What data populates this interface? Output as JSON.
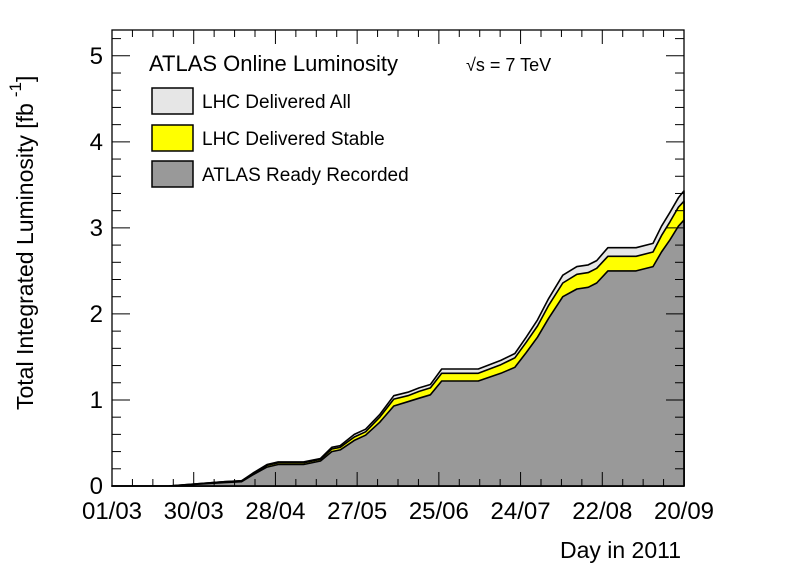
{
  "chart_data": {
    "type": "area",
    "title": "",
    "xlabel": "Day in 2011",
    "ylabel": "Total Integrated Luminosity [fb",
    "ylabel_sup": "-1",
    "ylabel_close": "]",
    "xlim": [
      0,
      203
    ],
    "ylim": [
      0,
      5.3
    ],
    "yticks": [
      0,
      1,
      2,
      3,
      4,
      5
    ],
    "xticks": [
      {
        "label": "01/03",
        "day": 0
      },
      {
        "label": "30/03",
        "day": 29
      },
      {
        "label": "28/04",
        "day": 58
      },
      {
        "label": "27/05",
        "day": 87
      },
      {
        "label": "25/06",
        "day": 116
      },
      {
        "label": "24/07",
        "day": 145
      },
      {
        "label": "22/08",
        "day": 174
      },
      {
        "label": "20/09",
        "day": 203
      }
    ],
    "x": [
      0,
      20,
      40,
      46,
      50,
      55,
      59,
      63,
      68,
      74,
      78,
      81,
      86,
      90,
      95,
      100,
      105,
      109,
      113,
      117,
      127,
      130,
      138,
      143,
      147,
      151,
      155,
      160,
      165,
      169,
      172,
      176,
      186,
      192,
      195,
      198,
      201,
      203
    ],
    "series": [
      {
        "name": "LHC Delivered All",
        "color": "#e6e6e6",
        "values": [
          0,
          0,
          0.05,
          0.06,
          0.15,
          0.25,
          0.28,
          0.28,
          0.28,
          0.32,
          0.45,
          0.47,
          0.6,
          0.66,
          0.83,
          1.05,
          1.09,
          1.14,
          1.18,
          1.36,
          1.36,
          1.36,
          1.46,
          1.54,
          1.73,
          1.93,
          2.18,
          2.45,
          2.55,
          2.57,
          2.62,
          2.77,
          2.77,
          2.82,
          3.02,
          3.18,
          3.35,
          3.43
        ]
      },
      {
        "name": "LHC Delivered Stable",
        "color": "#ffff00",
        "values": [
          0,
          0,
          0.05,
          0.06,
          0.14,
          0.24,
          0.27,
          0.27,
          0.27,
          0.31,
          0.43,
          0.45,
          0.57,
          0.63,
          0.8,
          1.01,
          1.05,
          1.1,
          1.14,
          1.31,
          1.31,
          1.31,
          1.41,
          1.49,
          1.67,
          1.86,
          2.1,
          2.36,
          2.46,
          2.48,
          2.53,
          2.67,
          2.67,
          2.72,
          2.91,
          3.07,
          3.24,
          3.31
        ]
      },
      {
        "name": "ATLAS Ready Recorded",
        "color": "#999999",
        "values": [
          0,
          0,
          0.04,
          0.05,
          0.13,
          0.22,
          0.25,
          0.25,
          0.25,
          0.29,
          0.4,
          0.42,
          0.53,
          0.59,
          0.74,
          0.93,
          0.98,
          1.02,
          1.06,
          1.22,
          1.22,
          1.22,
          1.31,
          1.38,
          1.55,
          1.73,
          1.95,
          2.2,
          2.29,
          2.31,
          2.36,
          2.5,
          2.5,
          2.55,
          2.72,
          2.86,
          3.02,
          3.09
        ]
      }
    ],
    "legend": {
      "placement": "top-left",
      "title": "ATLAS Online Luminosity",
      "energy_sym": "√s",
      "energy_val": " = 7 TeV"
    }
  }
}
